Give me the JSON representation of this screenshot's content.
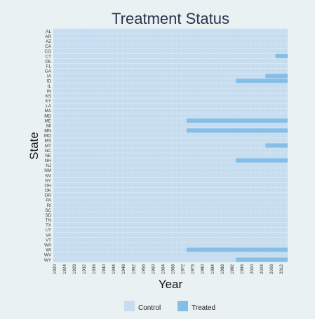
{
  "chart_data": {
    "type": "heatmap",
    "title": "Treatment Status",
    "xlabel": "Year",
    "ylabel": "State",
    "x_start": 1920,
    "x_end": 2014,
    "x_ticks": [
      1920,
      1924,
      1928,
      1932,
      1936,
      1940,
      1944,
      1948,
      1952,
      1956,
      1960,
      1964,
      1968,
      1972,
      1976,
      1980,
      1984,
      1988,
      1992,
      1996,
      2000,
      2004,
      2008,
      2012
    ],
    "states": [
      "AL",
      "AR",
      "AZ",
      "CA",
      "CO",
      "CT",
      "DE",
      "FL",
      "GA",
      "IA",
      "ID",
      "IL",
      "IN",
      "KS",
      "KY",
      "LA",
      "MA",
      "MD",
      "ME",
      "MI",
      "MN",
      "MO",
      "MS",
      "MT",
      "NC",
      "NE",
      "NH",
      "NJ",
      "NM",
      "NV",
      "NY",
      "OH",
      "OK",
      "OR",
      "PA",
      "RI",
      "SC",
      "SD",
      "TN",
      "TX",
      "UT",
      "VA",
      "VT",
      "WA",
      "WI",
      "WV",
      "WY"
    ],
    "treated_from": {
      "CT": 2010,
      "IA": 2006,
      "ID": 1994,
      "ME": 1974,
      "MN": 1974,
      "MT": 2006,
      "NH": 1994,
      "WI": 1974,
      "WY": 1994
    },
    "legend": {
      "position": "bottom",
      "items": [
        {
          "label": "Control",
          "color": "#c6dcef"
        },
        {
          "label": "Treated",
          "color": "#85bfe7"
        }
      ]
    },
    "grid": true
  }
}
